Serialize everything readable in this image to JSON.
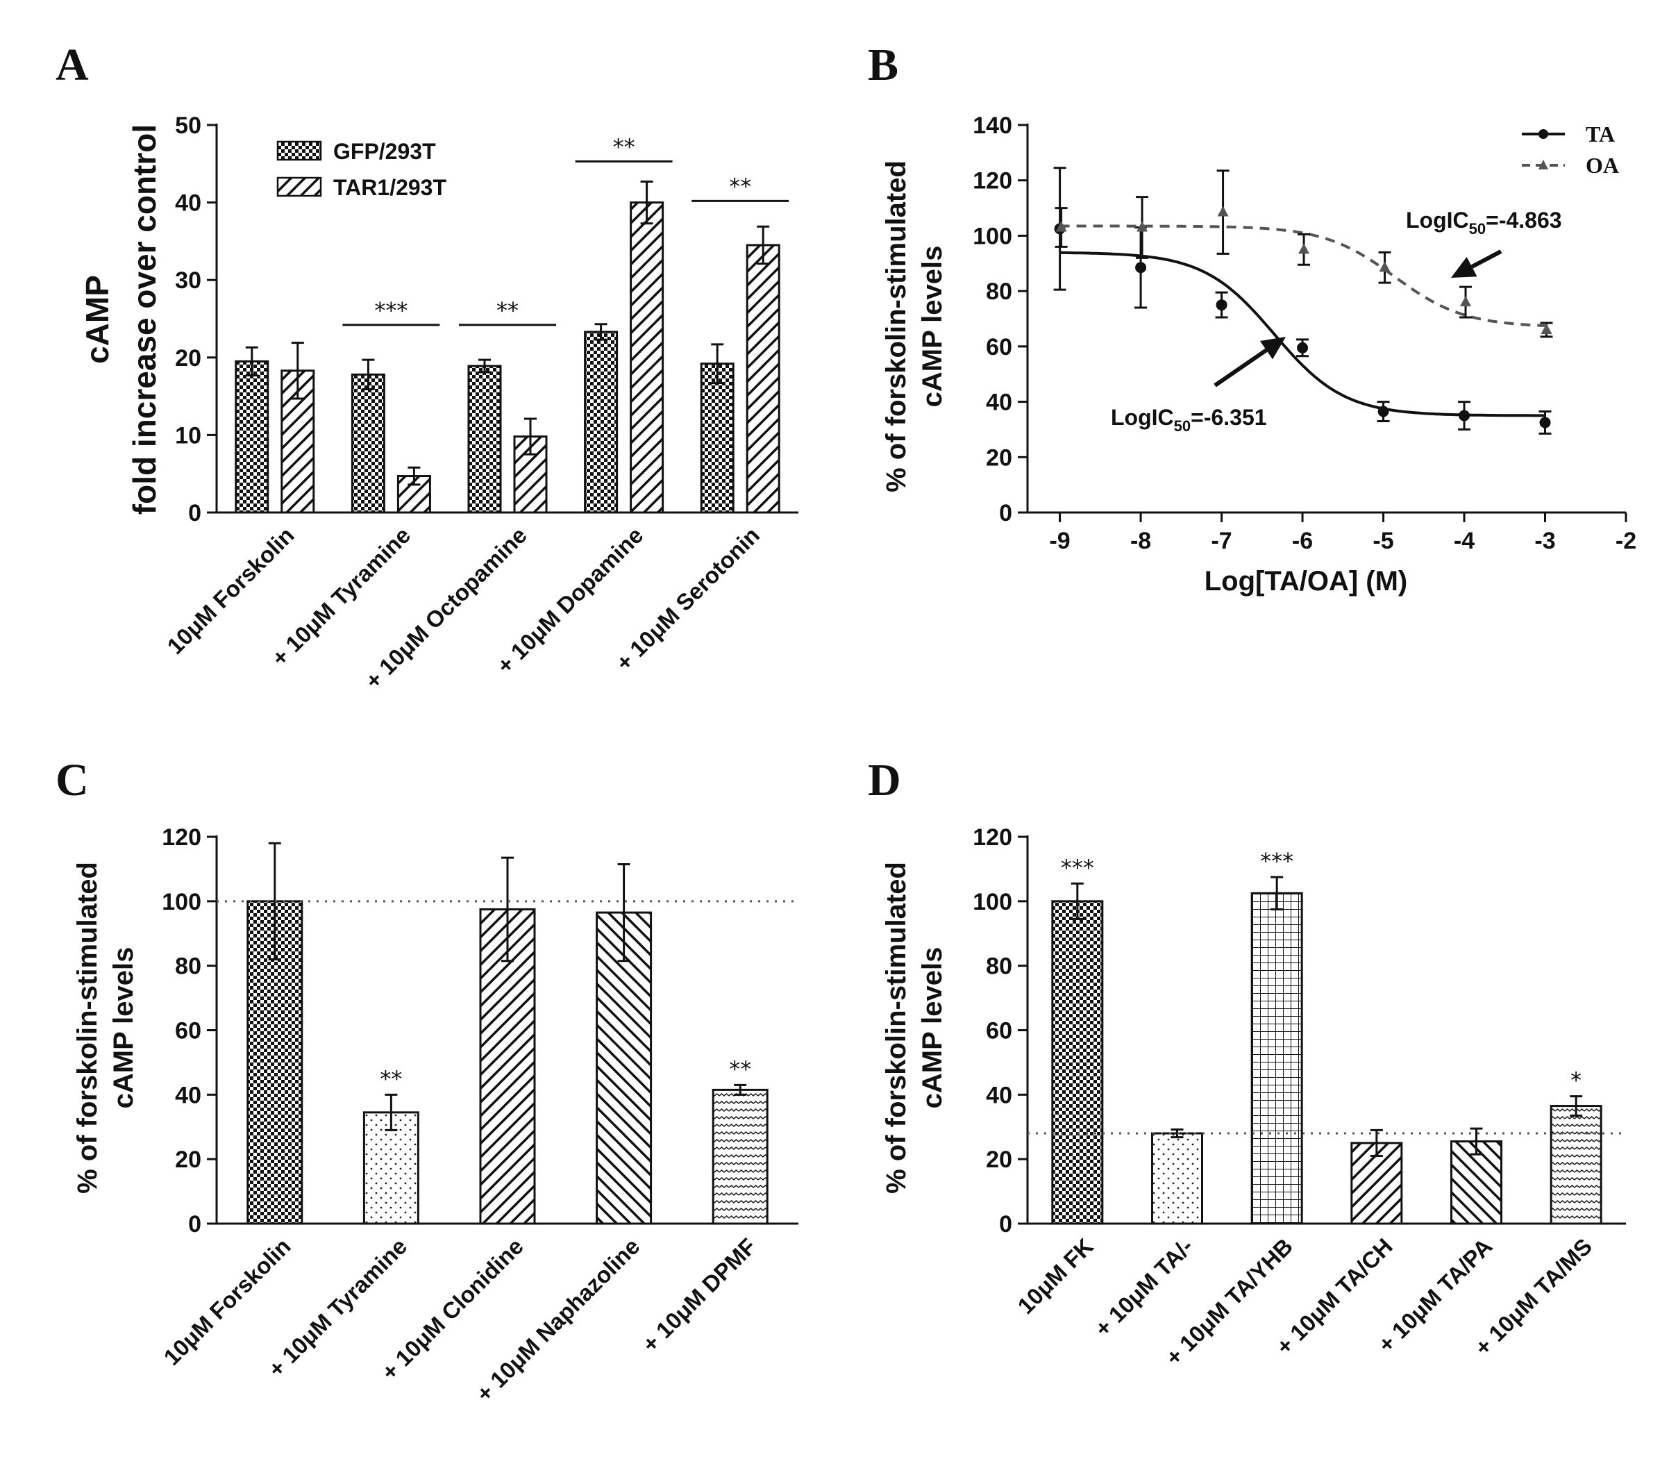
{
  "chart_data": [
    {
      "panel": "A",
      "type": "bar",
      "ylabel": [
        "cAMP",
        "fold increase over control"
      ],
      "ylim": [
        0,
        50
      ],
      "yticks": [
        0,
        10,
        20,
        30,
        40,
        50
      ],
      "categories": [
        "10μM Forskolin",
        "+ 10μM Tyramine",
        "+ 10μM Octopamine",
        "+ 10μM Dopamine",
        "+ 10μM Serotonin"
      ],
      "series": [
        {
          "name": "GFP/293T",
          "values": [
            19.5,
            17.8,
            18.9,
            23.3,
            19.2
          ],
          "errors": [
            1.8,
            1.9,
            0.8,
            1.0,
            2.5
          ],
          "pattern": "checker"
        },
        {
          "name": "TAR1/293T",
          "values": [
            18.3,
            4.7,
            9.8,
            40.0,
            34.5
          ],
          "errors": [
            3.6,
            1.1,
            2.3,
            2.7,
            2.4
          ],
          "pattern": "diag"
        }
      ],
      "significance": [
        {
          "category": 1,
          "label": "***",
          "y": 24.2
        },
        {
          "category": 2,
          "label": "**",
          "y": 24.2
        },
        {
          "category": 3,
          "label": "**",
          "y": 45.3
        },
        {
          "category": 4,
          "label": "**",
          "y": 40.2
        }
      ]
    },
    {
      "panel": "B",
      "type": "line",
      "xlabel": "Log[TA/OA] (M)",
      "ylabel": [
        "% of forskolin-stimulated",
        "cAMP levels"
      ],
      "xlim": [
        -9.4,
        -2
      ],
      "xticks": [
        -9,
        -8,
        -7,
        -6,
        -5,
        -4,
        -3,
        -2
      ],
      "ylim": [
        0,
        140
      ],
      "yticks": [
        0,
        20,
        40,
        60,
        80,
        100,
        120,
        140
      ],
      "series": [
        {
          "name": "TA",
          "x": [
            -9,
            -8,
            -7,
            -6,
            -5,
            -4,
            -3
          ],
          "y": [
            102.5,
            88.5,
            75,
            59.5,
            36.5,
            35,
            32.5
          ],
          "errors": [
            22,
            14.5,
            4.5,
            3,
            3.5,
            5,
            4
          ],
          "fit": {
            "top": 94,
            "bottom": 35,
            "logIC50": -6.351
          }
        },
        {
          "name": "OA",
          "x": [
            -9,
            -8,
            -7,
            -6,
            -5,
            -4,
            -3
          ],
          "y": [
            103,
            103,
            108.5,
            95,
            88.5,
            76,
            66
          ],
          "errors": [
            7,
            11,
            15,
            5.5,
            5.5,
            5.5,
            2.5
          ],
          "fit": {
            "top": 103.5,
            "bottom": 67,
            "logIC50": -4.863
          }
        }
      ],
      "annotations": [
        {
          "text_prefix": "LogIC",
          "text_sub": "50",
          "text_suffix": "=-4.863"
        },
        {
          "text_prefix": "LogIC",
          "text_sub": "50",
          "text_suffix": "=-6.351"
        }
      ]
    },
    {
      "panel": "C",
      "type": "bar",
      "ylabel": [
        "% of forskolin-stimulated",
        "cAMP levels"
      ],
      "ylim": [
        0,
        120
      ],
      "yticks": [
        0,
        20,
        40,
        60,
        80,
        100,
        120
      ],
      "reference_line": 100,
      "categories": [
        "10μM Forskolin",
        "+ 10μM Tyramine",
        "+ 10μM Clonidine",
        "+ 10μM Naphazoline",
        "+ 10μM DPMF"
      ],
      "values": [
        100,
        34.5,
        97.5,
        96.5,
        41.5
      ],
      "errors": [
        18,
        5.5,
        16,
        15,
        1.5
      ],
      "patterns": [
        "checker",
        "dots",
        "diag",
        "diag2",
        "wave"
      ],
      "significance": [
        "",
        "**",
        "",
        "",
        "**"
      ]
    },
    {
      "panel": "D",
      "type": "bar",
      "ylabel": [
        "% of forskolin-stimulated",
        "cAMP levels"
      ],
      "ylim": [
        0,
        120
      ],
      "yticks": [
        0,
        20,
        40,
        60,
        80,
        100,
        120
      ],
      "reference_line": 28,
      "categories": [
        "10μM FK",
        "+ 10μM TA/-",
        "+ 10μM TA/YHB",
        "+ 10μM TA/CH",
        "+ 10μM TA/PA",
        "+ 10μM TA/MS"
      ],
      "values": [
        100,
        28,
        102.5,
        25,
        25.5,
        36.5
      ],
      "errors": [
        5.5,
        1.2,
        5,
        4,
        4,
        3
      ],
      "patterns": [
        "checker",
        "dots",
        "grid",
        "diag",
        "diag2",
        "wave"
      ],
      "significance": [
        "***",
        "",
        "***",
        "",
        "",
        "*"
      ]
    }
  ],
  "panels": {
    "a": "A",
    "b": "B",
    "c": "C",
    "d": "D"
  }
}
